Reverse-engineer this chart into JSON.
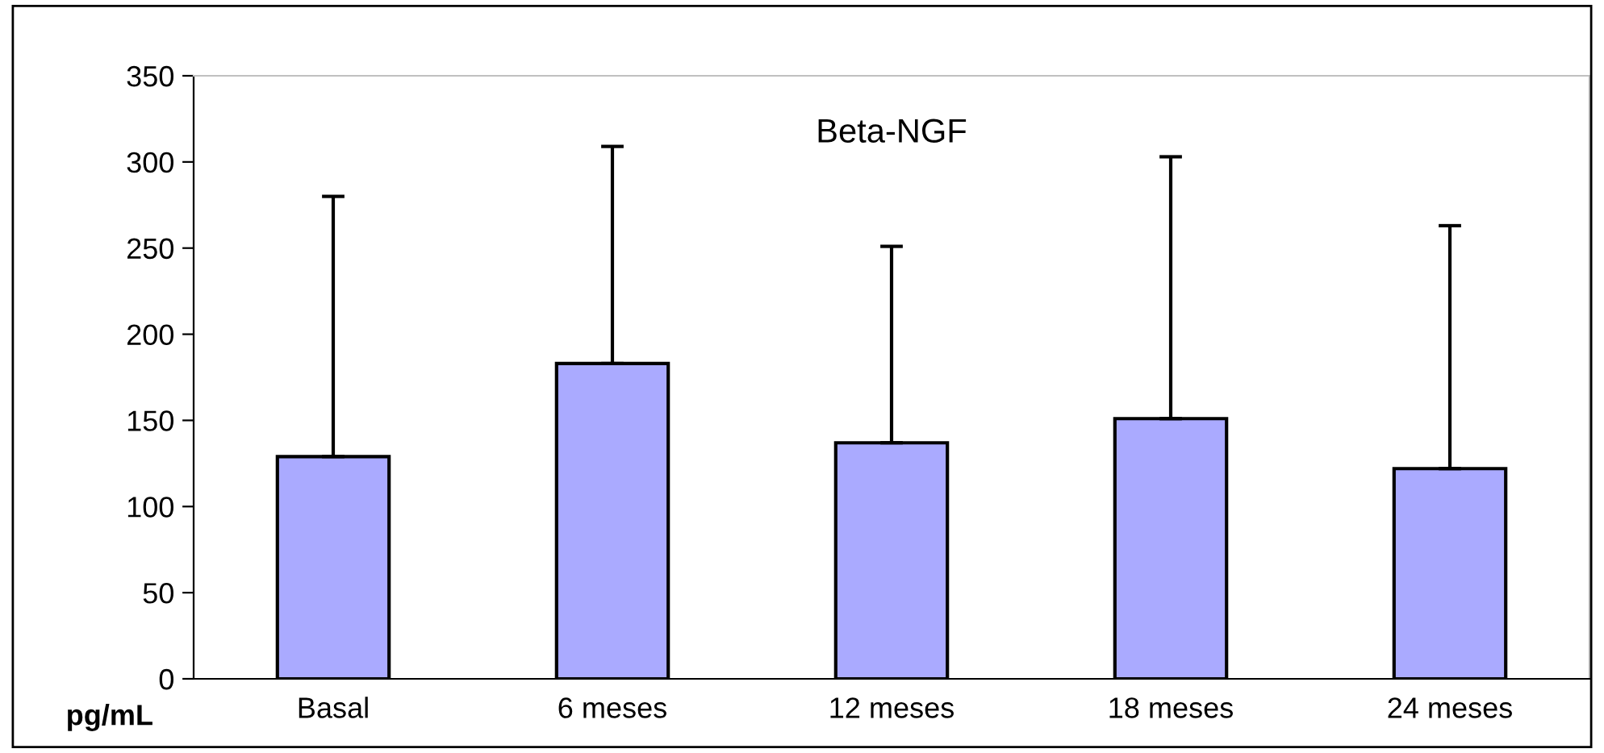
{
  "chart_data": {
    "type": "bar",
    "title": "Beta-NGF",
    "xlabel": "pg/mL",
    "categories": [
      "Basal",
      "6 meses",
      "12 meses",
      "18 meses",
      "24 meses"
    ],
    "values": [
      129,
      183,
      137,
      151,
      122
    ],
    "errors": [
      [
        129,
        280
      ],
      [
        183,
        309
      ],
      [
        137,
        251
      ],
      [
        151,
        303
      ],
      [
        122,
        263
      ]
    ],
    "color": "#aaaaff",
    "ylim": [
      0,
      350
    ],
    "yticks": [
      0,
      50,
      100,
      150,
      200,
      250,
      300,
      350
    ],
    "grid": false,
    "legend": false
  }
}
